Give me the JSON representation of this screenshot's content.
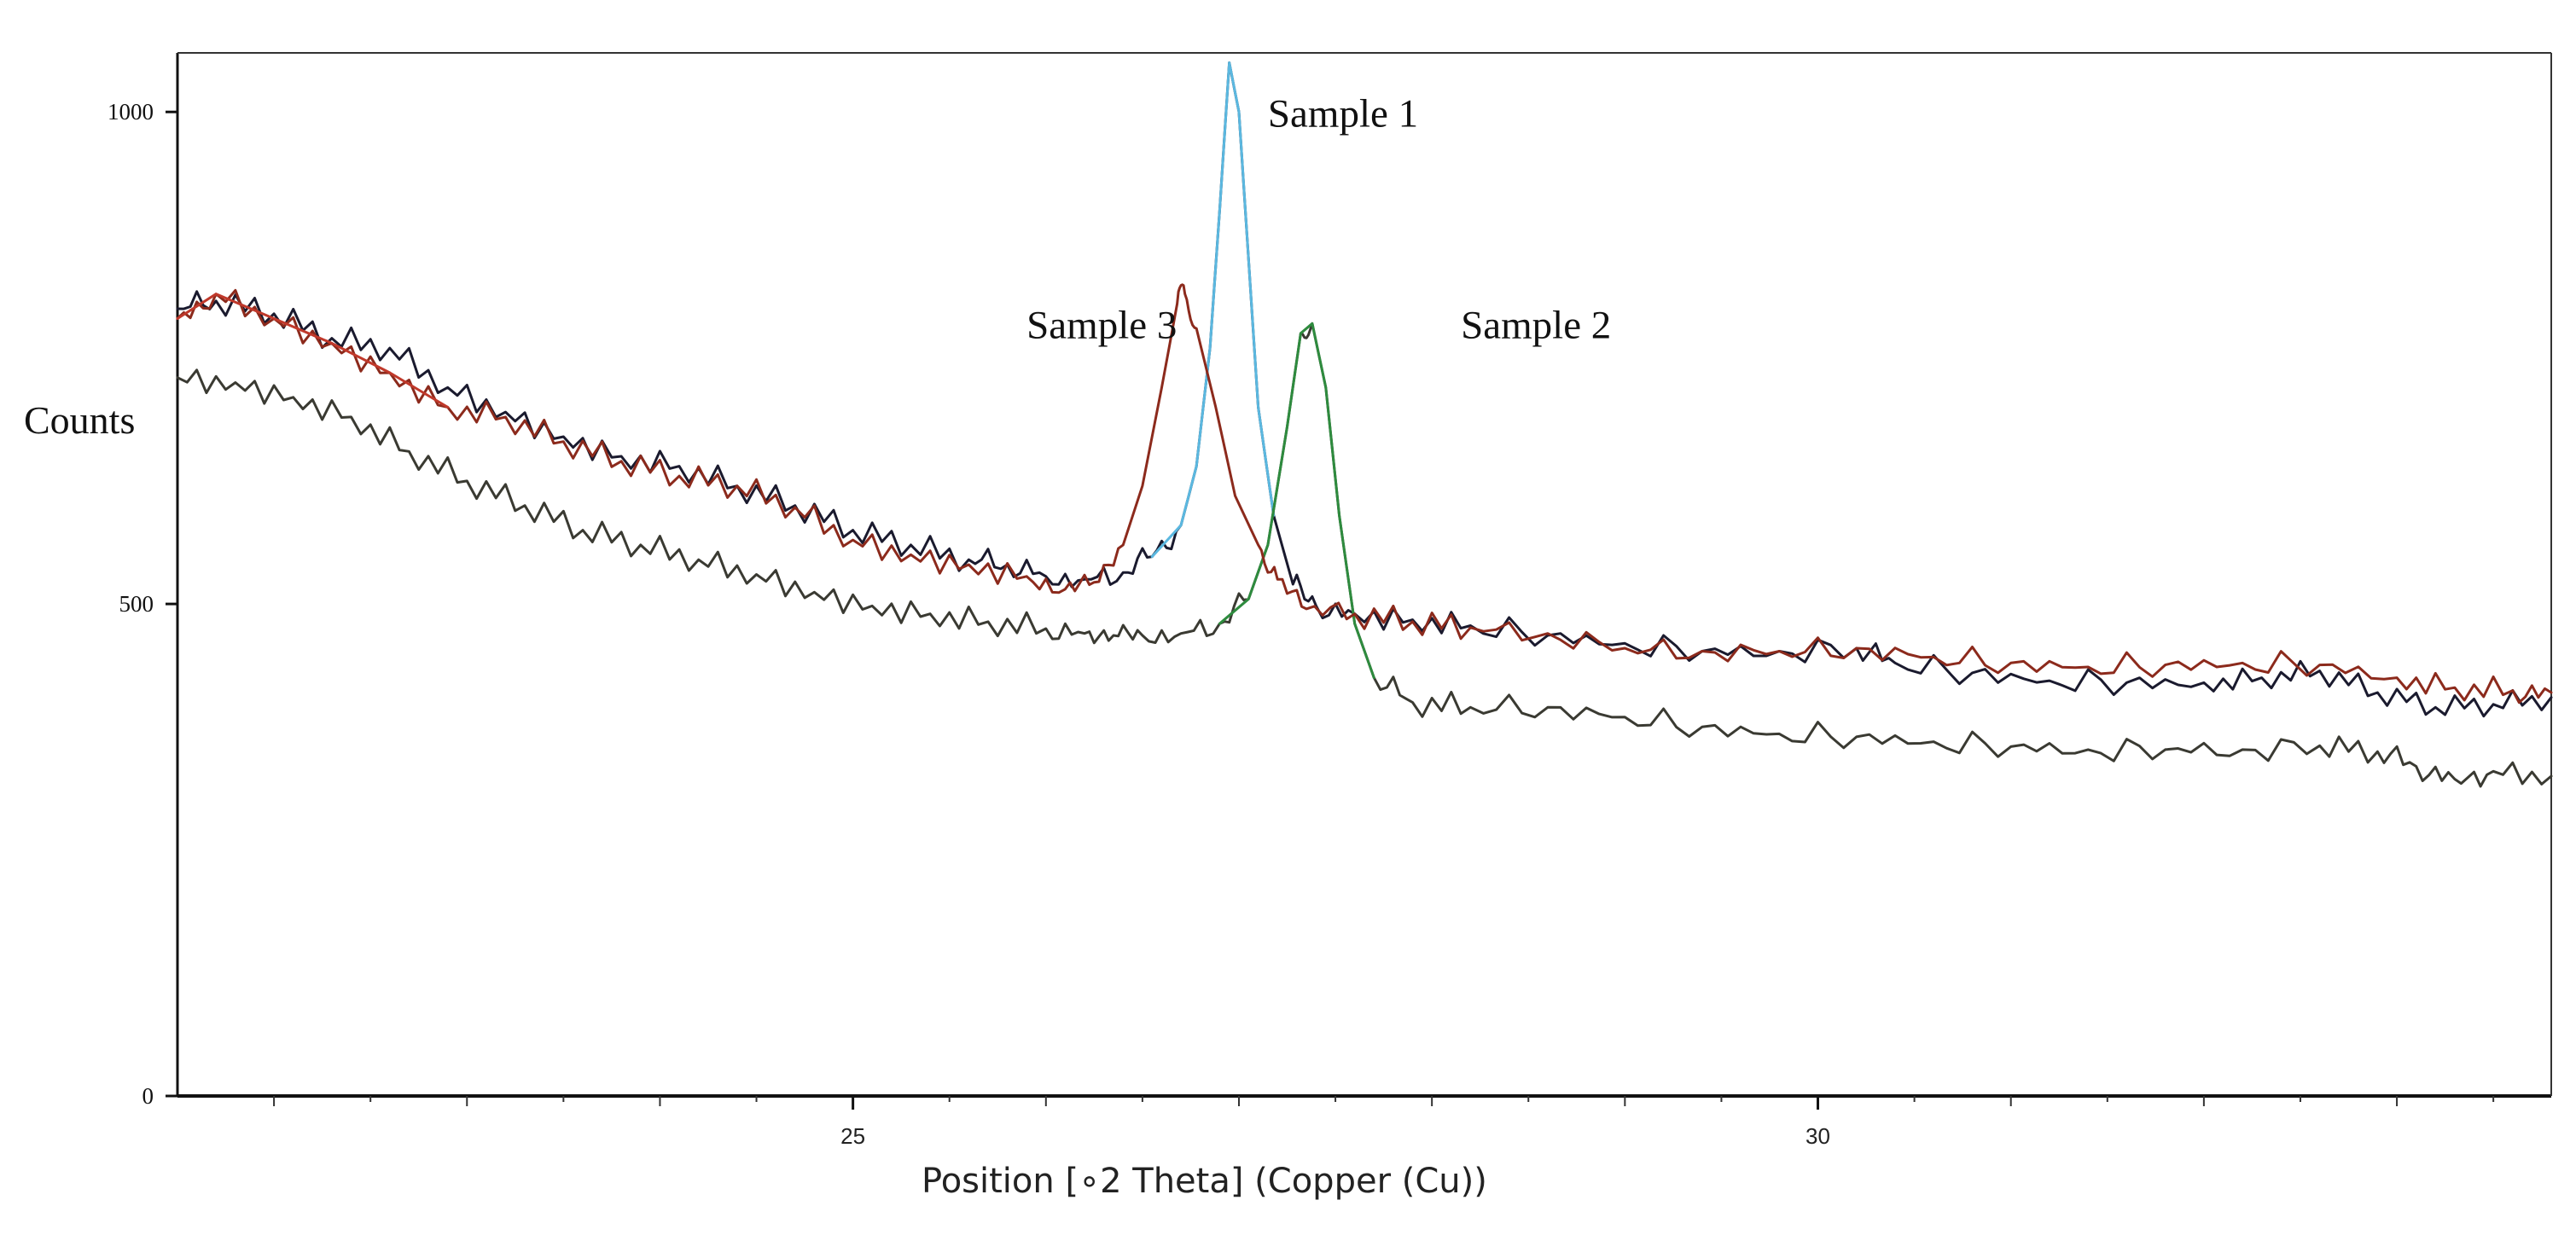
{
  "chart_data": {
    "type": "line",
    "title": "",
    "xlabel": "Position [∘2 Theta] (Copper (Cu))",
    "ylabel": "Counts",
    "xlim": [
      21.5,
      33.8
    ],
    "ylim": [
      0,
      1060
    ],
    "x_ticks": [
      25,
      30
    ],
    "y_ticks": [
      0,
      500,
      1000
    ],
    "grid": false,
    "legend": "none",
    "series": [
      {
        "name": "Sample 1",
        "color": "#1a1a2e",
        "peak_color": "#5bb8e0",
        "points": [
          [
            21.5,
            800
          ],
          [
            21.7,
            808
          ],
          [
            22.0,
            795
          ],
          [
            22.3,
            770
          ],
          [
            22.6,
            760
          ],
          [
            22.9,
            720
          ],
          [
            23.2,
            695
          ],
          [
            23.5,
            670
          ],
          [
            23.8,
            650
          ],
          [
            24.1,
            640
          ],
          [
            24.4,
            620
          ],
          [
            24.7,
            600
          ],
          [
            25.0,
            575
          ],
          [
            25.3,
            560
          ],
          [
            25.6,
            545
          ],
          [
            25.8,
            540
          ],
          [
            26.0,
            528
          ],
          [
            26.2,
            525
          ],
          [
            26.4,
            532
          ],
          [
            26.55,
            548
          ],
          [
            26.7,
            580
          ],
          [
            26.78,
            640
          ],
          [
            26.85,
            760
          ],
          [
            26.9,
            900
          ],
          [
            26.95,
            1050
          ],
          [
            27.0,
            1000
          ],
          [
            27.05,
            850
          ],
          [
            27.1,
            700
          ],
          [
            27.18,
            590
          ],
          [
            27.28,
            520
          ],
          [
            27.4,
            498
          ],
          [
            27.6,
            490
          ],
          [
            27.9,
            484
          ],
          [
            28.2,
            478
          ],
          [
            28.6,
            468
          ],
          [
            29.0,
            460
          ],
          [
            29.4,
            452
          ],
          [
            29.8,
            452
          ],
          [
            30.2,
            455
          ],
          [
            30.4,
            440
          ],
          [
            30.8,
            430
          ],
          [
            31.2,
            422
          ],
          [
            31.6,
            420
          ],
          [
            32.0,
            420
          ],
          [
            32.3,
            425
          ],
          [
            32.6,
            432
          ],
          [
            32.9,
            410
          ],
          [
            33.2,
            395
          ],
          [
            33.5,
            398
          ],
          [
            33.8,
            405
          ]
        ]
      },
      {
        "name": "Sample 2",
        "color": "#3a3a32",
        "peak_color": "#2e8b3e",
        "points": [
          [
            21.5,
            730
          ],
          [
            21.8,
            725
          ],
          [
            22.1,
            710
          ],
          [
            22.4,
            690
          ],
          [
            22.7,
            655
          ],
          [
            23.0,
            625
          ],
          [
            23.3,
            600
          ],
          [
            23.6,
            575
          ],
          [
            23.9,
            560
          ],
          [
            24.2,
            545
          ],
          [
            24.5,
            530
          ],
          [
            24.8,
            512
          ],
          [
            25.1,
            498
          ],
          [
            25.4,
            490
          ],
          [
            25.7,
            482
          ],
          [
            26.0,
            475
          ],
          [
            26.2,
            470
          ],
          [
            26.35,
            468
          ],
          [
            26.5,
            468
          ],
          [
            26.7,
            470
          ],
          [
            26.9,
            480
          ],
          [
            27.05,
            505
          ],
          [
            27.15,
            560
          ],
          [
            27.25,
            680
          ],
          [
            27.32,
            775
          ],
          [
            27.38,
            785
          ],
          [
            27.45,
            720
          ],
          [
            27.52,
            590
          ],
          [
            27.6,
            480
          ],
          [
            27.7,
            425
          ],
          [
            27.9,
            400
          ],
          [
            28.2,
            395
          ],
          [
            28.6,
            395
          ],
          [
            29.0,
            385
          ],
          [
            29.4,
            375
          ],
          [
            29.8,
            368
          ],
          [
            30.2,
            365
          ],
          [
            30.6,
            360
          ],
          [
            31.0,
            355
          ],
          [
            31.4,
            352
          ],
          [
            31.8,
            352
          ],
          [
            32.2,
            352
          ],
          [
            32.6,
            356
          ],
          [
            32.9,
            350
          ],
          [
            33.1,
            335
          ],
          [
            33.3,
            322
          ],
          [
            33.5,
            330
          ],
          [
            33.8,
            325
          ]
        ]
      },
      {
        "name": "Sample 3",
        "color": "#8c2a1c",
        "peak_color": "#c0392b",
        "points": [
          [
            21.5,
            790
          ],
          [
            21.7,
            815
          ],
          [
            22.0,
            790
          ],
          [
            22.3,
            765
          ],
          [
            22.6,
            735
          ],
          [
            22.9,
            700
          ],
          [
            23.2,
            690
          ],
          [
            23.5,
            665
          ],
          [
            23.8,
            645
          ],
          [
            24.1,
            630
          ],
          [
            24.4,
            620
          ],
          [
            24.7,
            598
          ],
          [
            25.0,
            565
          ],
          [
            25.3,
            550
          ],
          [
            25.6,
            540
          ],
          [
            25.9,
            528
          ],
          [
            26.1,
            515
          ],
          [
            26.25,
            522
          ],
          [
            26.4,
            560
          ],
          [
            26.5,
            620
          ],
          [
            26.6,
            720
          ],
          [
            26.68,
            805
          ],
          [
            26.72,
            815
          ],
          [
            26.78,
            780
          ],
          [
            26.88,
            700
          ],
          [
            26.98,
            610
          ],
          [
            27.1,
            560
          ],
          [
            27.2,
            525
          ],
          [
            27.35,
            495
          ],
          [
            27.6,
            490
          ],
          [
            27.9,
            482
          ],
          [
            28.2,
            476
          ],
          [
            28.6,
            470
          ],
          [
            29.0,
            455
          ],
          [
            29.4,
            452
          ],
          [
            29.8,
            452
          ],
          [
            30.2,
            455
          ],
          [
            30.6,
            446
          ],
          [
            31.0,
            440
          ],
          [
            31.4,
            436
          ],
          [
            31.8,
            438
          ],
          [
            32.2,
            440
          ],
          [
            32.6,
            438
          ],
          [
            33.0,
            425
          ],
          [
            33.3,
            415
          ],
          [
            33.6,
            412
          ],
          [
            33.8,
            410
          ]
        ]
      }
    ],
    "annotations": [
      {
        "text": "Sample 1",
        "x": 27.15,
        "y": 985
      },
      {
        "text": "Sample 3",
        "x": 25.9,
        "y": 770
      },
      {
        "text": "Sample 2",
        "x": 28.15,
        "y": 770
      }
    ]
  }
}
